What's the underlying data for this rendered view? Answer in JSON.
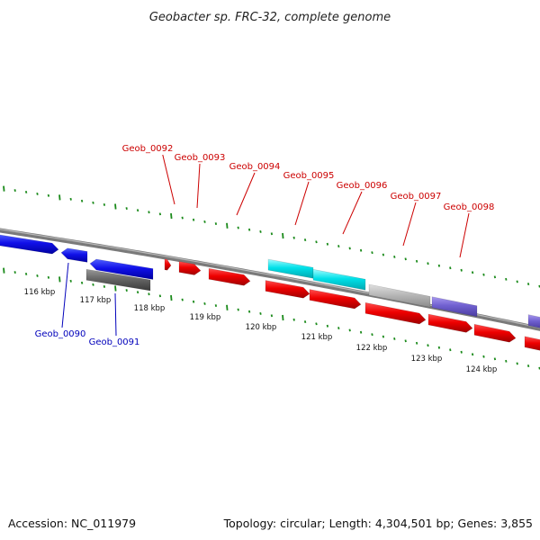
{
  "title": "Geobacter sp. FRC-32, complete genome",
  "footer": {
    "accession": "Accession: NC_011979",
    "summary": "Topology: circular; Length: 4,304,501 bp; Genes: 3,855"
  },
  "colors": {
    "forward_gene": "#ee0000",
    "reverse_gene": "#1010e8",
    "forward_label": "#cc0000",
    "reverse_label": "#0000bb",
    "cyan_gene": "#00e0e8",
    "lavender_gene": "#7060d0",
    "gray_gene": "#b8b8b8",
    "dark_gray_gene": "#666666",
    "backbone": "#888888",
    "tick": "#1a8a1a"
  },
  "scale_labels": [
    "116 kbp",
    "117 kbp",
    "118 kbp",
    "119 kbp",
    "120 kbp",
    "121 kbp",
    "122 kbp",
    "123 kbp",
    "124 kbp"
  ],
  "forward_labels": [
    "Geob_0092",
    "Geob_0093",
    "Geob_0094",
    "Geob_0095",
    "Geob_0096",
    "Geob_0097",
    "Geob_0098"
  ],
  "reverse_labels": [
    "Geob_0090",
    "Geob_0091"
  ]
}
